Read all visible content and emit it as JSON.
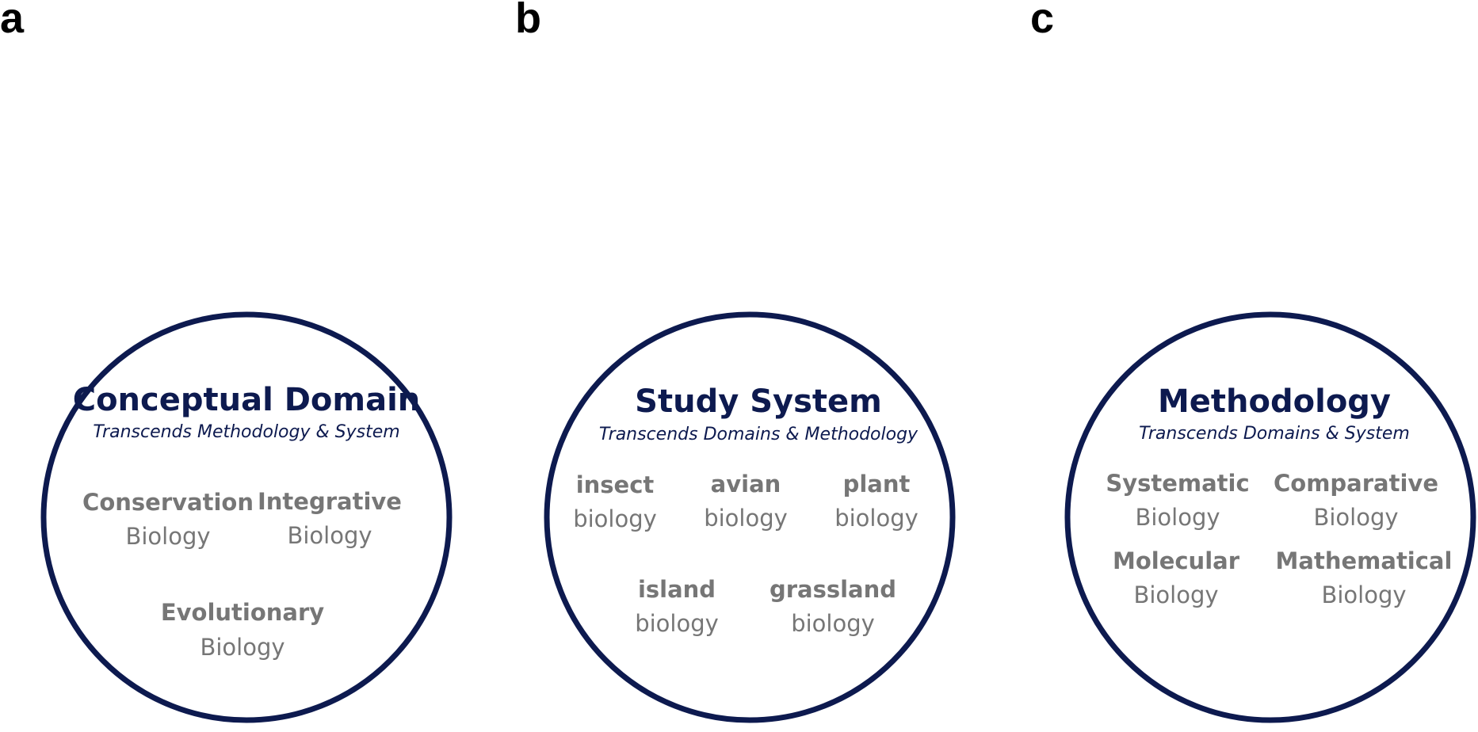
{
  "colors": {
    "navy": "#0d1a4f",
    "gray": "#767676",
    "black": "#000000"
  },
  "panels": [
    {
      "letter": "a",
      "title": "Conceptual Domain",
      "subtitle": "Transcends Methodology & System",
      "items": [
        {
          "line1": "Conservation",
          "line2": "Biology"
        },
        {
          "line1": "Integrative",
          "line2": "Biology"
        },
        {
          "line1": "Evolutionary",
          "line2": "Biology"
        }
      ]
    },
    {
      "letter": "b",
      "title": "Study System",
      "subtitle": "Transcends Domains & Methodology",
      "items": [
        {
          "line1": "insect",
          "line2": "biology"
        },
        {
          "line1": "avian",
          "line2": "biology"
        },
        {
          "line1": "plant",
          "line2": "biology"
        },
        {
          "line1": "island",
          "line2": "biology"
        },
        {
          "line1": "grassland",
          "line2": "biology"
        }
      ]
    },
    {
      "letter": "c",
      "title": "Methodology",
      "subtitle": "Transcends Domains & System",
      "items": [
        {
          "line1": "Systematic",
          "line2": "Biology"
        },
        {
          "line1": "Comparative",
          "line2": "Biology"
        },
        {
          "line1": "Molecular",
          "line2": "Biology"
        },
        {
          "line1": "Mathematical",
          "line2": "Biology"
        }
      ]
    }
  ]
}
